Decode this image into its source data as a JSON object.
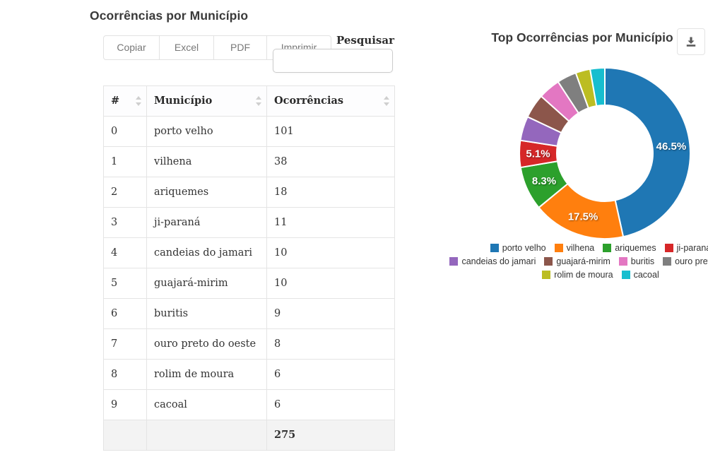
{
  "left_panel": {
    "title": "Ocorrências por Município",
    "buttons": {
      "copy": "Copiar",
      "excel": "Excel",
      "pdf": "PDF",
      "print": "Imprimir"
    },
    "search": {
      "label": "Pesquisar",
      "value": ""
    },
    "table": {
      "headers": [
        "#",
        "Município",
        "Ocorrências"
      ],
      "rows": [
        [
          "0",
          "porto velho",
          "101"
        ],
        [
          "1",
          "vilhena",
          "38"
        ],
        [
          "2",
          "ariquemes",
          "18"
        ],
        [
          "3",
          "ji-paraná",
          "11"
        ],
        [
          "4",
          "candeias do jamari",
          "10"
        ],
        [
          "5",
          "guajará-mirim",
          "10"
        ],
        [
          "6",
          "buritis",
          "9"
        ],
        [
          "7",
          "ouro preto do oeste",
          "8"
        ],
        [
          "8",
          "rolim de moura",
          "6"
        ],
        [
          "9",
          "cacoal",
          "6"
        ]
      ],
      "footer_total": "275"
    }
  },
  "right_panel": {
    "title": "Top Ocorrências por Município",
    "download_icon": "download-icon"
  },
  "chart_data": {
    "type": "pie",
    "donut": true,
    "title": "Top Ocorrências por Município",
    "start_angle_deg": 0,
    "direction": "clockwise",
    "categories": [
      "porto velho",
      "vilhena",
      "ariquemes",
      "ji-paraná",
      "candeias do jamari",
      "guajará-mirim",
      "buritis",
      "ouro preto do oeste",
      "rolim de moura",
      "cacoal"
    ],
    "values": [
      101,
      38,
      18,
      11,
      10,
      10,
      9,
      8,
      6,
      6
    ],
    "percent_labels": [
      "46.5%",
      "17.5%",
      "8.3%",
      "5.1%",
      "",
      "",
      "",
      "",
      "",
      ""
    ],
    "colors": [
      "#1f77b4",
      "#ff7f0e",
      "#2ca02c",
      "#d62728",
      "#9467bd",
      "#8c564b",
      "#e377c2",
      "#7f7f7f",
      "#bcbd22",
      "#17becf"
    ],
    "legend_position": "bottom",
    "legend_rows": [
      [
        0,
        1,
        2,
        3
      ],
      [
        4,
        5,
        6,
        7
      ],
      [
        8,
        9
      ]
    ]
  }
}
